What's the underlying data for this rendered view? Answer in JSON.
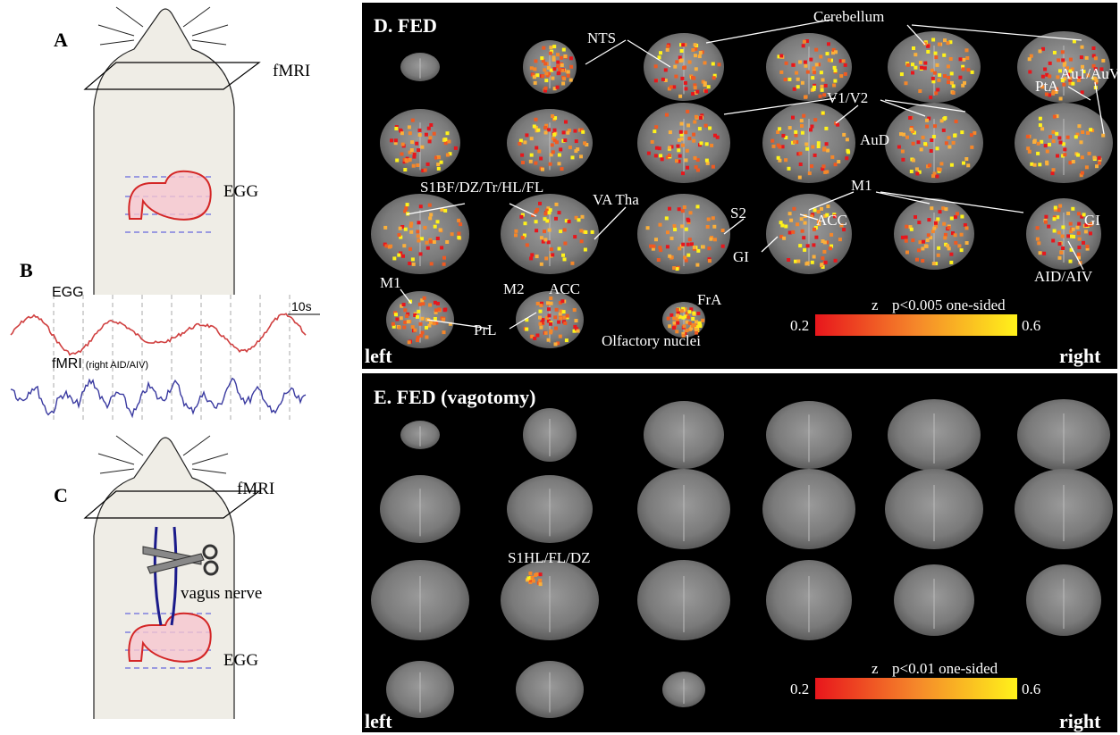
{
  "panel_a": {
    "label": "A",
    "fmri": "fMRI",
    "egg": "EGG"
  },
  "panel_b": {
    "label": "B",
    "egg": "EGG",
    "scale": "10s",
    "fmri": "fMRI",
    "fmri_region": "(right AID/AIV)"
  },
  "panel_c": {
    "label": "C",
    "fmri": "fMRI",
    "nerve": "vagus nerve",
    "egg": "EGG"
  },
  "panel_d": {
    "title": "D. FED",
    "annotations": [
      "NTS",
      "Cerebellum",
      "V1/V2",
      "Au1/AuV",
      "PtA",
      "AuD",
      "S1BF/DZ/Tr/HL/FL",
      "VA Tha",
      "S2",
      "M1",
      "ACC",
      "GI",
      "GI",
      "AID/AIV",
      "M1",
      "M2",
      "ACC",
      "PrL",
      "FrA",
      "Olfactory nuclei"
    ],
    "colorbar": {
      "symbol": "z",
      "threshold": "p<0.005 one-sided",
      "min": "0.2",
      "max": "0.6"
    },
    "left": "left",
    "right": "right"
  },
  "panel_e": {
    "title": "E. FED (vagotomy)",
    "annotations": [
      "S1HL/FL/DZ"
    ],
    "colorbar": {
      "symbol": "z",
      "threshold": "p<0.01 one-sided",
      "min": "0.2",
      "max": "0.6"
    },
    "left": "left",
    "right": "right"
  }
}
